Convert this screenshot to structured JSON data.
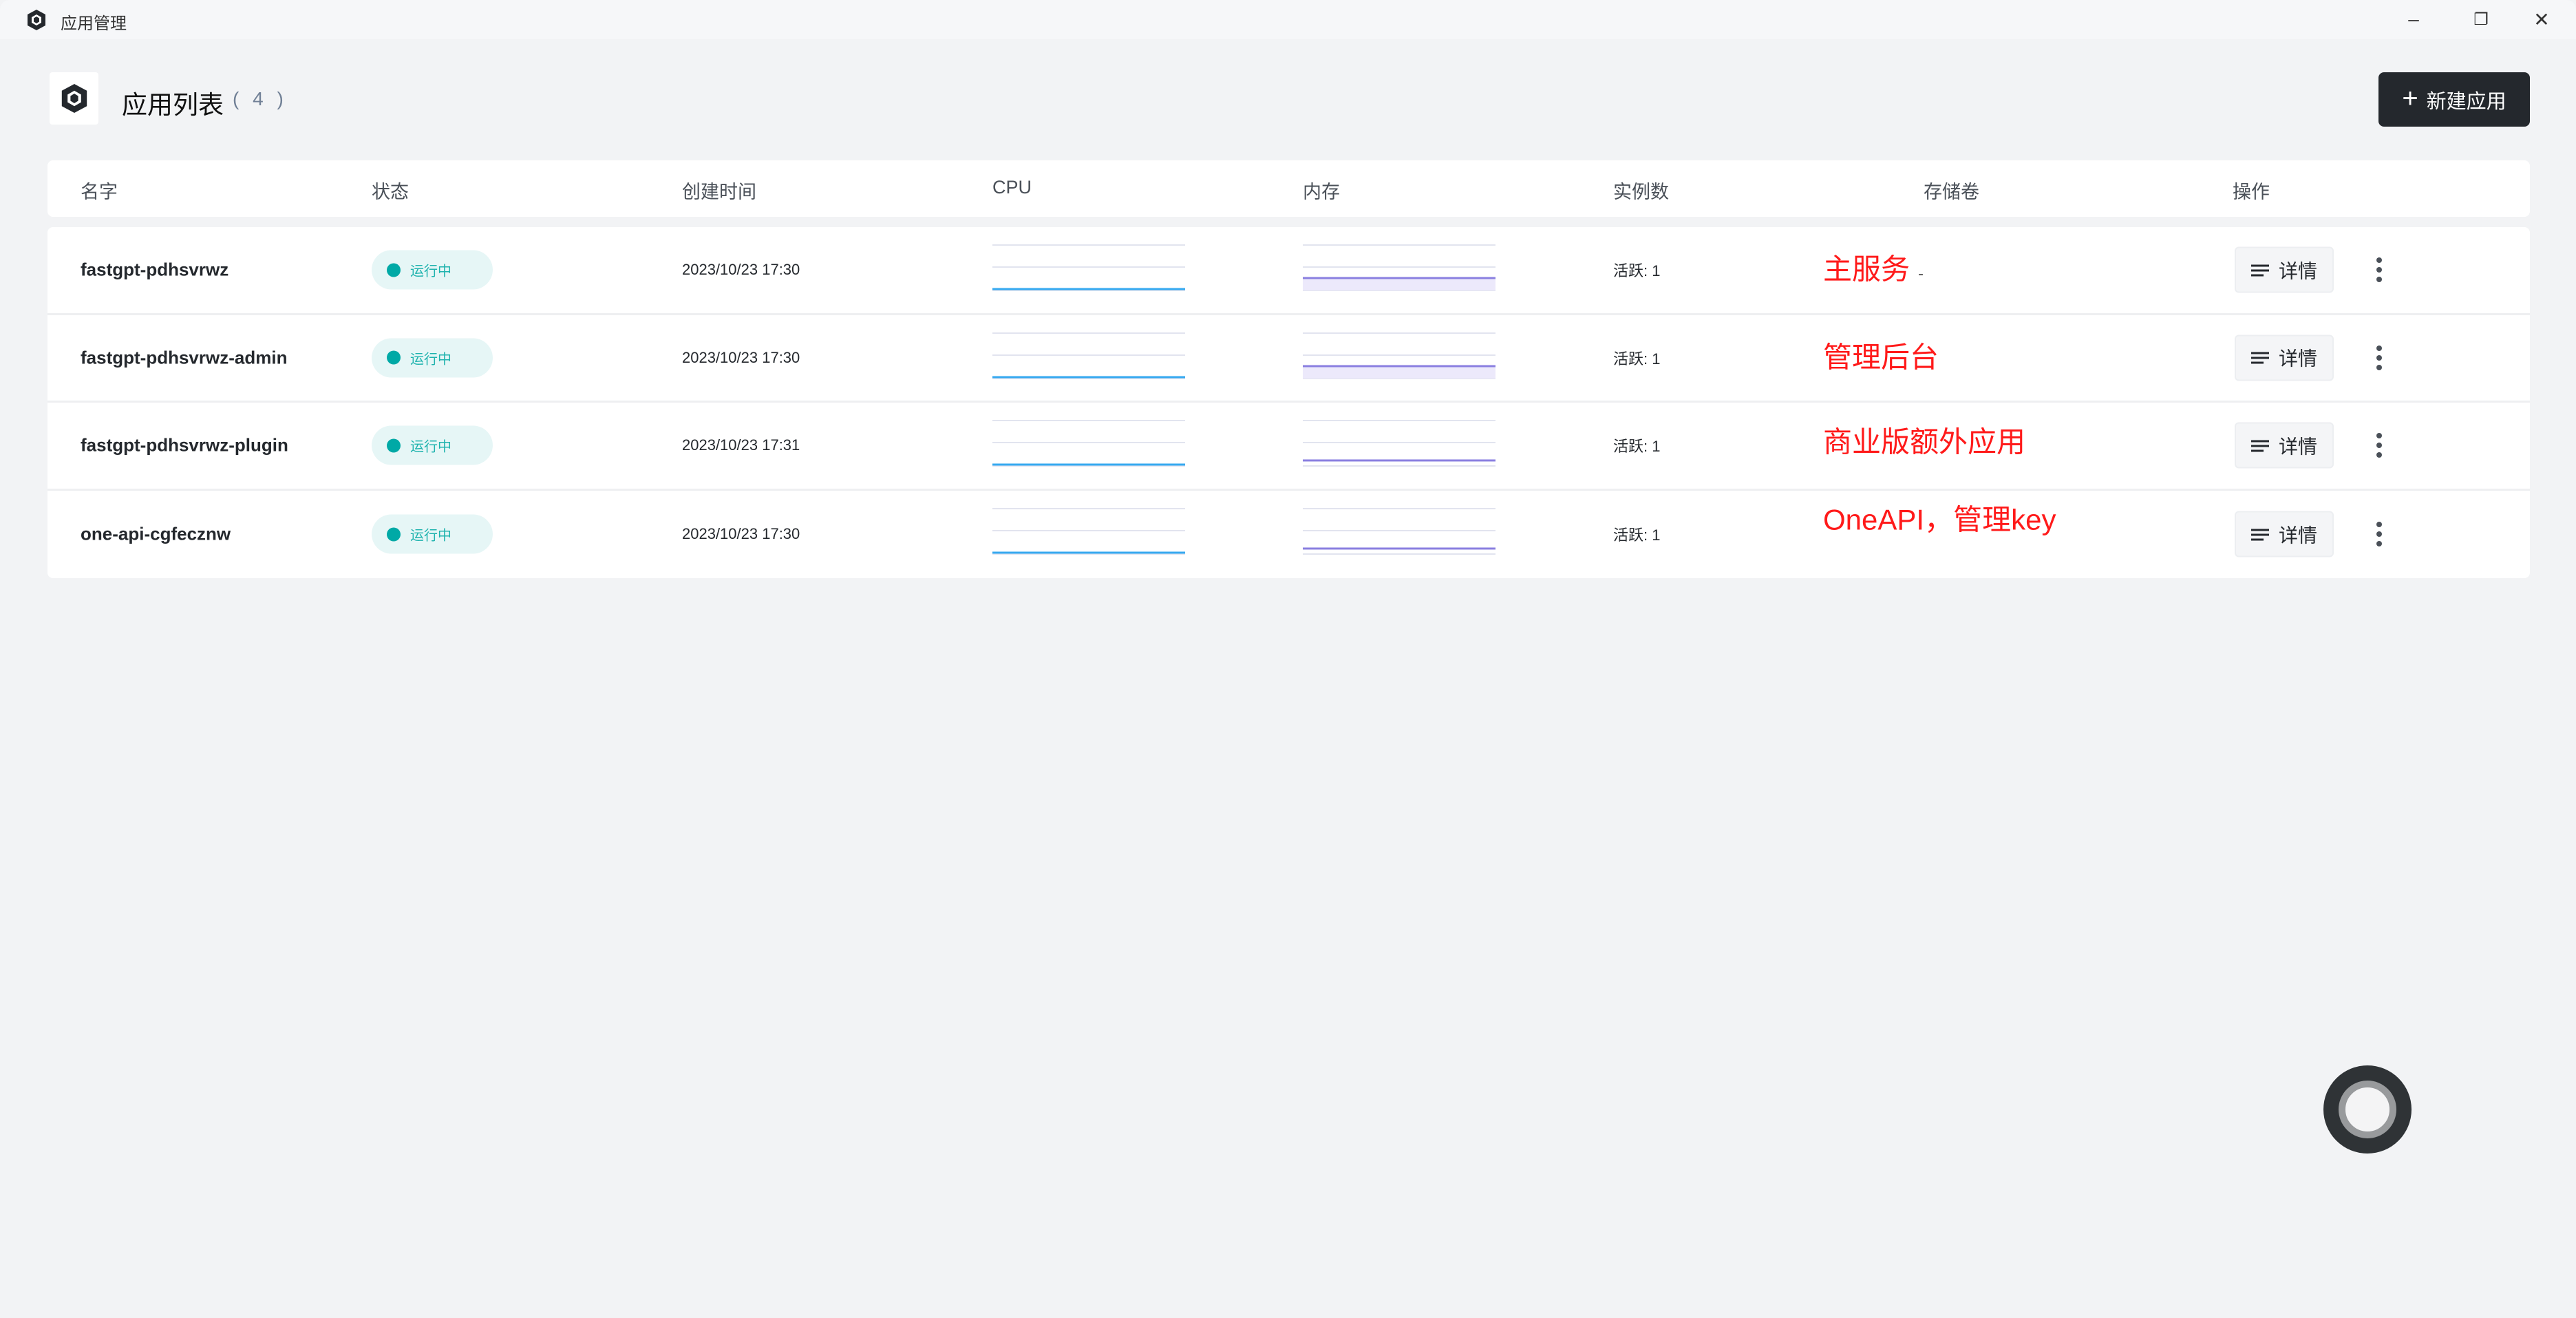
{
  "window": {
    "title": "应用管理",
    "controls": [
      "minimize",
      "restore",
      "close"
    ]
  },
  "header": {
    "title": "应用列表",
    "count": "( 4 )",
    "new_button": "新建应用"
  },
  "table": {
    "columns": [
      "名字",
      "状态",
      "创建时间",
      "CPU",
      "内存",
      "实例数",
      "存储卷",
      "操作"
    ],
    "rows": [
      {
        "name": "fastgpt-pdhsvrwz",
        "status": "运行中",
        "created": "2023/10/23 17:30",
        "instances": "活跃: 1",
        "annotation": "主服务",
        "annotation_suffix": "-",
        "detail": "详情"
      },
      {
        "name": "fastgpt-pdhsvrwz-admin",
        "status": "运行中",
        "created": "2023/10/23 17:30",
        "instances": "活跃: 1",
        "annotation": "管理后台",
        "annotation_suffix": "",
        "detail": "详情"
      },
      {
        "name": "fastgpt-pdhsvrwz-plugin",
        "status": "运行中",
        "created": "2023/10/23 17:31",
        "instances": "活跃: 1",
        "annotation": "商业版额外应用",
        "annotation_suffix": "",
        "detail": "详情"
      },
      {
        "name": "one-api-cgfecznw",
        "status": "运行中",
        "created": "2023/10/23 17:30",
        "instances": "活跃: 1",
        "annotation": "OneAPI，管理key",
        "annotation_suffix": "",
        "detail": "详情"
      }
    ]
  },
  "colors": {
    "accent_dark": "#24282d",
    "status_running": "#00a9a6",
    "cpu_line": "#36a9f0",
    "memory_line": "#8a7fe0",
    "annotation": "#ff1a1a"
  }
}
